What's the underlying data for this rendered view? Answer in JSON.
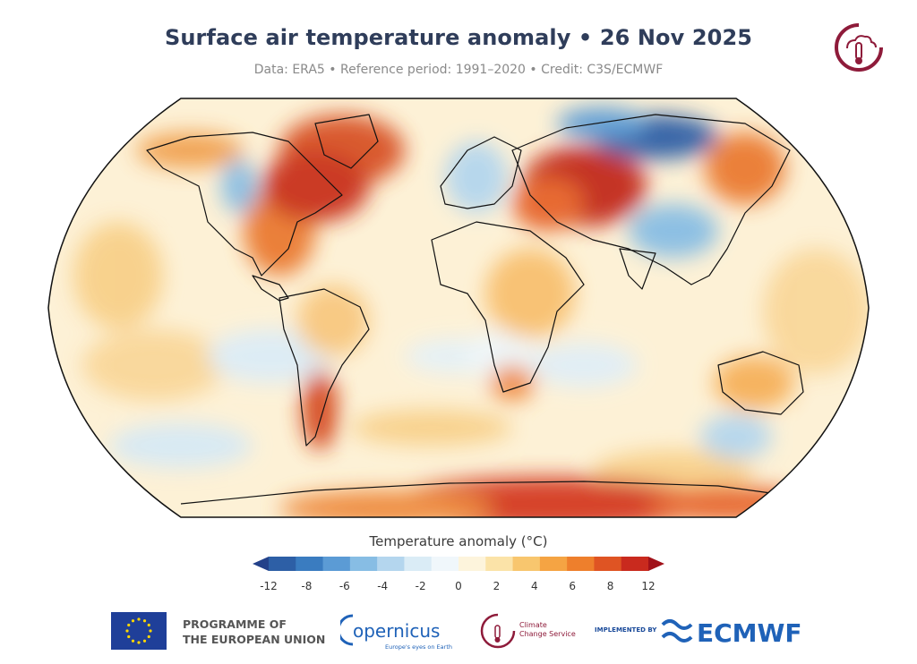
{
  "title": "Surface air temperature anomaly • 26 Nov 2025",
  "subtitle": "Data: ERA5 • Reference period: 1991–2020 • Credit: C3S/ECMWF",
  "colorbar": {
    "title": "Temperature anomaly (°C)",
    "ticks": [
      "-12",
      "-8",
      "-6",
      "-4",
      "-2",
      "0",
      "2",
      "4",
      "6",
      "8",
      "12"
    ],
    "colors": [
      "#23418a",
      "#2d5fa6",
      "#3a7cc0",
      "#5b9bd5",
      "#87bde4",
      "#b4d6ee",
      "#daecf6",
      "#f0f7fb",
      "#fdf4dc",
      "#fbe3a8",
      "#f8c66e",
      "#f5a443",
      "#ee7f2c",
      "#df5423",
      "#c92a1e",
      "#a11119"
    ]
  },
  "map": {
    "projection": "Robinson",
    "highlights": [
      {
        "region": "Eastern Canada & Greenland",
        "anomaly": "warm"
      },
      {
        "region": "Central Asia / Kazakhstan",
        "anomaly": "warm"
      },
      {
        "region": "Northern Siberia",
        "anomaly": "cold"
      },
      {
        "region": "Western Canada",
        "anomaly": "cold"
      },
      {
        "region": "Patagonia",
        "anomaly": "warm"
      },
      {
        "region": "East Antarctica",
        "anomaly": "warm"
      }
    ]
  },
  "footer": {
    "eu_line1": "PROGRAMME OF",
    "eu_line2": "THE EUROPEAN UNION",
    "copernicus": "opernicus",
    "copernicus_tagline": "Europe's eyes on Earth",
    "c3s_line1": "Climate",
    "c3s_line2": "Change Service",
    "implemented_by": "IMPLEMENTED BY",
    "ecmwf": "ECMWF"
  }
}
